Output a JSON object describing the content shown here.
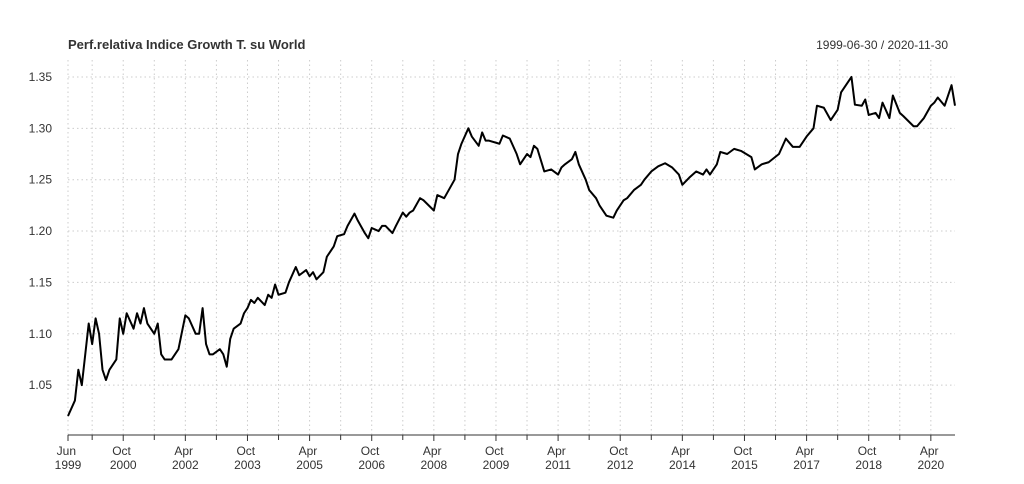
{
  "chart_data": {
    "type": "line",
    "title": "Perf.relativa Indice Growth T. su World",
    "subtitle": "1999-06-30 / 2020-11-30",
    "color": "#000000",
    "grid": true,
    "x": [
      "1999-06",
      "1999-08",
      "1999-09",
      "1999-10",
      "1999-12",
      "2000-01",
      "2000-02",
      "2000-03",
      "2000-04",
      "2000-05",
      "2000-06",
      "2000-08",
      "2000-09",
      "2000-10",
      "2000-11",
      "2001-01",
      "2001-02",
      "2001-03",
      "2001-04",
      "2001-05",
      "2001-07",
      "2001-08",
      "2001-09",
      "2001-10",
      "2001-12",
      "2002-01",
      "2002-02",
      "2002-04",
      "2002-05",
      "2002-07",
      "2002-08",
      "2002-09",
      "2002-10",
      "2002-11",
      "2002-12",
      "2003-02",
      "2003-03",
      "2003-04",
      "2003-05",
      "2003-06",
      "2003-08",
      "2003-09",
      "2003-10",
      "2003-11",
      "2003-12",
      "2004-01",
      "2004-03",
      "2004-04",
      "2004-05",
      "2004-06",
      "2004-07",
      "2004-09",
      "2004-10",
      "2004-12",
      "2005-01",
      "2005-03",
      "2005-04",
      "2005-05",
      "2005-06",
      "2005-08",
      "2005-09",
      "2005-11",
      "2005-12",
      "2006-02",
      "2006-03",
      "2006-05",
      "2006-06",
      "2006-08",
      "2006-09",
      "2006-10",
      "2006-12",
      "2007-01",
      "2007-02",
      "2007-04",
      "2007-05",
      "2007-07",
      "2007-08",
      "2007-09",
      "2007-10",
      "2007-12",
      "2008-01",
      "2008-04",
      "2008-05",
      "2008-07",
      "2008-10",
      "2008-11",
      "2008-12",
      "2009-02",
      "2009-03",
      "2009-05",
      "2009-06",
      "2009-07",
      "2009-08",
      "2009-11",
      "2009-12",
      "2010-02",
      "2010-04",
      "2010-05",
      "2010-07",
      "2010-08",
      "2010-09",
      "2010-10",
      "2010-12",
      "2011-02",
      "2011-04",
      "2011-05",
      "2011-06",
      "2011-08",
      "2011-09",
      "2011-10",
      "2011-12",
      "2012-01",
      "2012-03",
      "2012-04",
      "2012-06",
      "2012-08",
      "2012-09",
      "2012-11",
      "2012-12",
      "2013-02",
      "2013-04",
      "2013-05",
      "2013-07",
      "2013-09",
      "2013-11",
      "2014-01",
      "2014-03",
      "2014-04",
      "2014-06",
      "2014-08",
      "2014-10",
      "2014-11",
      "2014-12",
      "2015-02",
      "2015-03",
      "2015-05",
      "2015-07",
      "2015-09",
      "2015-12",
      "2016-01",
      "2016-03",
      "2016-05",
      "2016-08",
      "2016-10",
      "2016-12",
      "2017-02",
      "2017-04",
      "2017-06",
      "2017-07",
      "2017-09",
      "2017-11",
      "2018-01",
      "2018-02",
      "2018-05",
      "2018-06",
      "2018-08",
      "2018-09",
      "2018-10",
      "2018-12",
      "2019-01",
      "2019-02",
      "2019-04",
      "2019-05",
      "2019-07",
      "2019-08",
      "2019-11",
      "2019-12",
      "2020-02",
      "2020-04",
      "2020-05",
      "2020-06",
      "2020-08",
      "2020-10",
      "2020-11"
    ],
    "values": [
      1.02,
      1.035,
      1.065,
      1.05,
      1.11,
      1.09,
      1.115,
      1.1,
      1.065,
      1.055,
      1.065,
      1.075,
      1.115,
      1.1,
      1.12,
      1.105,
      1.12,
      1.11,
      1.125,
      1.11,
      1.1,
      1.11,
      1.08,
      1.075,
      1.075,
      1.08,
      1.085,
      1.118,
      1.115,
      1.1,
      1.1,
      1.125,
      1.09,
      1.08,
      1.08,
      1.085,
      1.08,
      1.068,
      1.095,
      1.105,
      1.11,
      1.12,
      1.125,
      1.133,
      1.13,
      1.135,
      1.128,
      1.138,
      1.135,
      1.148,
      1.138,
      1.14,
      1.15,
      1.165,
      1.157,
      1.162,
      1.156,
      1.16,
      1.153,
      1.16,
      1.175,
      1.185,
      1.195,
      1.197,
      1.205,
      1.217,
      1.21,
      1.198,
      1.193,
      1.203,
      1.2,
      1.205,
      1.205,
      1.198,
      1.205,
      1.218,
      1.214,
      1.218,
      1.22,
      1.232,
      1.23,
      1.22,
      1.235,
      1.232,
      1.25,
      1.275,
      1.285,
      1.3,
      1.292,
      1.283,
      1.296,
      1.288,
      1.288,
      1.285,
      1.293,
      1.29,
      1.275,
      1.265,
      1.275,
      1.272,
      1.283,
      1.28,
      1.258,
      1.26,
      1.255,
      1.262,
      1.265,
      1.27,
      1.277,
      1.265,
      1.25,
      1.24,
      1.232,
      1.225,
      1.215,
      1.213,
      1.22,
      1.23,
      1.232,
      1.24,
      1.245,
      1.25,
      1.258,
      1.263,
      1.266,
      1.262,
      1.255,
      1.245,
      1.252,
      1.258,
      1.255,
      1.26,
      1.255,
      1.265,
      1.277,
      1.275,
      1.28,
      1.278,
      1.272,
      1.26,
      1.265,
      1.267,
      1.275,
      1.29,
      1.282,
      1.282,
      1.292,
      1.3,
      1.322,
      1.32,
      1.308,
      1.318,
      1.335,
      1.35,
      1.323,
      1.322,
      1.328,
      1.313,
      1.315,
      1.31,
      1.325,
      1.31,
      1.332,
      1.315,
      1.312,
      1.302,
      1.302,
      1.31,
      1.322,
      1.325,
      1.33,
      1.322,
      1.342,
      1.322
    ],
    "xlim": [
      "1999-06",
      "2020-11"
    ],
    "xticks": [
      {
        "value": "1999-06",
        "label": "Jun 1999"
      },
      {
        "value": "2000-10",
        "label": "Oct 2000"
      },
      {
        "value": "2002-04",
        "label": "Apr 2002"
      },
      {
        "value": "2003-10",
        "label": "Oct 2003"
      },
      {
        "value": "2005-04",
        "label": "Apr 2005"
      },
      {
        "value": "2006-10",
        "label": "Oct 2006"
      },
      {
        "value": "2008-04",
        "label": "Apr 2008"
      },
      {
        "value": "2009-10",
        "label": "Oct 2009"
      },
      {
        "value": "2011-04",
        "label": "Apr 2011"
      },
      {
        "value": "2012-10",
        "label": "Oct 2012"
      },
      {
        "value": "2014-04",
        "label": "Apr 2014"
      },
      {
        "value": "2015-10",
        "label": "Oct 2015"
      },
      {
        "value": "2017-04",
        "label": "Apr 2017"
      },
      {
        "value": "2018-10",
        "label": "Oct 2018"
      },
      {
        "value": "2020-04",
        "label": "Apr 2020"
      }
    ],
    "xminorticks": [
      "2000-01",
      "2001-07",
      "2003-01",
      "2004-07",
      "2006-01",
      "2007-07",
      "2009-01",
      "2010-07",
      "2012-01",
      "2013-07",
      "2015-01",
      "2016-07",
      "2018-01",
      "2019-07"
    ],
    "ylim": [
      1.0015,
      1.3665
    ],
    "yticks": [
      1.05,
      {
        "value": 1.1,
        "label": "1.10"
      },
      1.15,
      {
        "value": 1.2,
        "label": "1.20"
      },
      1.25,
      {
        "value": 1.3,
        "label": "1.30"
      },
      1.35
    ]
  }
}
